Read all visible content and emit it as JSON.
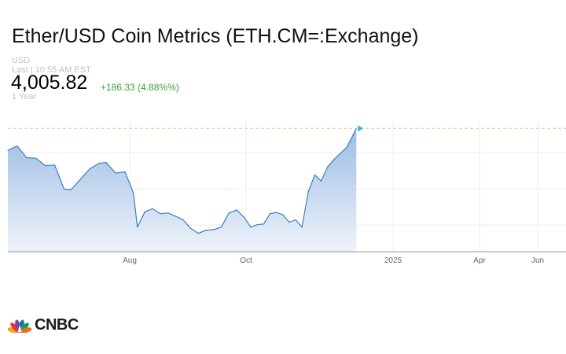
{
  "header": {
    "title": "Ether/USD Coin Metrics (ETH.CM=:Exchange)",
    "currency": "USD",
    "last_time": "Last | 10:55 AM EST",
    "price": "4,005.82",
    "change": "+186.33 (4.88%%)",
    "range": "1 Year"
  },
  "brand": {
    "name": "CNBC"
  },
  "colors": {
    "line": "#3a7fc1",
    "area_top": "#9dbde4",
    "area_bottom": "#eef3fa",
    "change_up": "#3aa53a",
    "marker": "#33b6e6",
    "reference_line": "#d6cf86"
  },
  "chart_data": {
    "type": "area",
    "title": "",
    "xlabel": "",
    "ylabel": "",
    "x_ticks": [
      "Aug",
      "Oct",
      "2025",
      "Apr",
      "Jun"
    ],
    "x_range": [
      "2024-06-10",
      "2025-06-30"
    ],
    "ylim": [
      2000,
      4150
    ],
    "grid": true,
    "legend": "none",
    "reference_line": {
      "y": 4005.82,
      "style": "dashed"
    },
    "series": [
      {
        "name": "",
        "x": [
          "2024-06-10",
          "2024-06-14",
          "2024-06-18",
          "2024-06-22",
          "2024-06-26",
          "2024-06-30",
          "2024-07-04",
          "2024-07-07",
          "2024-07-11",
          "2024-07-15",
          "2024-07-19",
          "2024-07-22",
          "2024-07-26",
          "2024-07-30",
          "2024-08-03",
          "2024-08-05",
          "2024-08-09",
          "2024-08-13",
          "2024-08-17",
          "2024-08-21",
          "2024-08-25",
          "2024-08-29",
          "2024-09-02",
          "2024-09-06",
          "2024-09-10",
          "2024-09-14",
          "2024-09-18",
          "2024-09-22",
          "2024-09-26",
          "2024-09-30",
          "2024-10-04",
          "2024-10-08",
          "2024-10-12",
          "2024-10-16",
          "2024-10-20",
          "2024-10-24",
          "2024-10-28",
          "2024-11-01",
          "2024-11-05",
          "2024-11-09",
          "2024-11-13",
          "2024-11-17",
          "2024-11-21",
          "2024-11-25",
          "2024-11-29",
          "2024-12-03",
          "2024-12-07",
          "2024-12-09"
        ],
        "values": [
          3650,
          3720,
          3530,
          3520,
          3400,
          3410,
          3020,
          3010,
          3180,
          3350,
          3440,
          3450,
          3280,
          3300,
          2950,
          2400,
          2650,
          2700,
          2620,
          2630,
          2580,
          2520,
          2380,
          2300,
          2350,
          2360,
          2400,
          2630,
          2680,
          2560,
          2400,
          2440,
          2450,
          2620,
          2640,
          2600,
          2480,
          2520,
          2400,
          2980,
          3250,
          3150,
          3380,
          3500,
          3600,
          3700,
          3900,
          4005.82
        ]
      }
    ]
  }
}
